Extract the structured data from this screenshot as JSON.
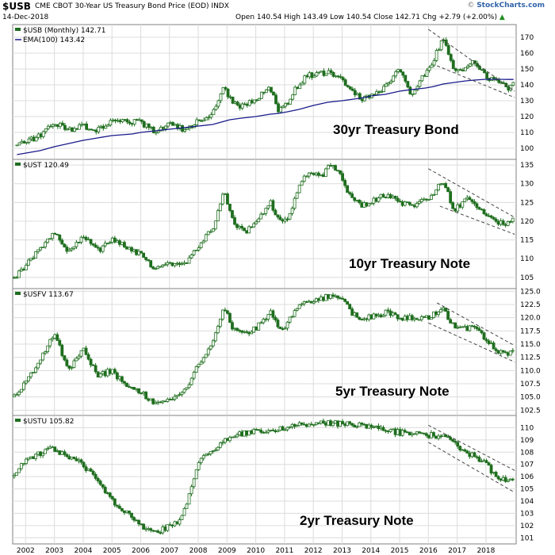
{
  "header": {
    "symbol": "$USB",
    "description": "CME CBOT 30-Year US Treasury Bond Price (EOD)  INDX",
    "date": "14-Dec-2018",
    "ohlc_text": "Open 140.54  High 143.49  Low 140.54  Close 142.71  Chg +2.79 (+2.00%)",
    "up_arrow": "▲",
    "logo_prefix": "© ",
    "logo_brand": "StockCharts.com"
  },
  "colors": {
    "candle": "#1f6e1f",
    "ema": "#1a1a8c",
    "grid": "#dcdcdc",
    "frame": "#808080",
    "trend": "#444444"
  },
  "chart_data": [
    {
      "type": "candlestick",
      "symbol": "$USB",
      "legend_main": "$USB (Monthly) 142.71",
      "legend_ema": "EMA(100) 143.42",
      "annotation": "30yr Treasury Bond",
      "ylim": [
        93,
        178
      ],
      "yticks": [
        "100",
        "110",
        "120",
        "130",
        "140",
        "150",
        "160",
        "170"
      ],
      "xticks": [
        "2002",
        "2003",
        "2004",
        "2005",
        "2006",
        "2007",
        "2008",
        "2009",
        "2010",
        "2011",
        "2012",
        "2013",
        "2014",
        "2015",
        "2016",
        "2017",
        "2018"
      ],
      "x": [
        2001.7,
        2002.5,
        2003.0,
        2003.5,
        2004.0,
        2004.5,
        2005.0,
        2005.7,
        2006.0,
        2006.5,
        2007.0,
        2007.5,
        2008.0,
        2008.5,
        2008.9,
        2009.1,
        2009.5,
        2010.0,
        2010.5,
        2010.8,
        2011.1,
        2011.5,
        2011.8,
        2012.0,
        2012.5,
        2013.0,
        2013.4,
        2013.8,
        2014.0,
        2014.5,
        2015.0,
        2015.4,
        2015.9,
        2016.2,
        2016.5,
        2016.9,
        2017.3,
        2017.6,
        2018.0,
        2018.4,
        2018.8,
        2018.96
      ],
      "close": [
        102,
        108,
        116,
        111,
        114,
        111,
        118,
        117,
        116,
        111,
        115,
        112,
        117,
        121,
        140,
        131,
        126,
        131,
        138,
        124,
        128,
        141,
        146,
        146,
        148,
        143,
        134,
        131,
        133,
        138,
        151,
        134,
        148,
        156,
        170,
        148,
        151,
        154,
        145,
        141,
        138,
        142.7
      ],
      "ema": [
        96,
        98.5,
        101,
        103,
        105,
        106.5,
        108,
        109,
        110,
        111,
        112,
        113,
        114,
        115,
        117,
        118,
        119,
        120,
        121.5,
        122,
        123,
        124.5,
        126,
        127,
        129,
        130,
        131,
        132,
        133,
        134,
        136,
        137,
        138,
        139,
        140.5,
        141.5,
        142.5,
        143,
        143.5,
        143.5,
        143.4,
        143.4
      ],
      "trend_lines": [
        {
          "x": [
            2016.0,
            2019.0
          ],
          "y": [
            175,
            136
          ]
        },
        {
          "x": [
            2016.3,
            2019.0
          ],
          "y": [
            152,
            132
          ]
        }
      ]
    },
    {
      "type": "candlestick",
      "symbol": "$UST",
      "legend_main": "$UST 120.49",
      "annotation": "10yr Treasury Note",
      "ylim": [
        102,
        136.5
      ],
      "yticks": [
        "105",
        "110",
        "115",
        "120",
        "125",
        "130",
        "135"
      ],
      "xticks": [
        "2002",
        "2003",
        "2004",
        "2005",
        "2006",
        "2007",
        "2008",
        "2009",
        "2010",
        "2011",
        "2012",
        "2013",
        "2014",
        "2015",
        "2016",
        "2017",
        "2018"
      ],
      "x": [
        2001.6,
        2002.0,
        2002.5,
        2003.0,
        2003.5,
        2004.0,
        2004.5,
        2005.0,
        2005.5,
        2006.0,
        2006.5,
        2007.0,
        2007.5,
        2008.0,
        2008.5,
        2008.9,
        2009.2,
        2009.6,
        2010.0,
        2010.5,
        2010.9,
        2011.2,
        2011.5,
        2011.8,
        2012.3,
        2012.6,
        2013.0,
        2013.3,
        2013.7,
        2014.0,
        2014.5,
        2015.0,
        2015.5,
        2016.0,
        2016.5,
        2016.9,
        2017.3,
        2017.6,
        2018.0,
        2018.3,
        2018.7,
        2018.96
      ],
      "close": [
        105,
        108,
        113,
        117,
        112,
        116,
        112,
        115,
        113,
        111,
        107,
        109,
        108,
        113,
        118,
        128,
        120,
        117,
        119,
        125,
        119,
        122,
        130,
        133,
        132,
        135,
        132,
        126,
        124,
        125,
        127,
        125,
        124,
        126,
        131,
        123,
        126,
        125,
        122,
        120,
        119,
        120.5
      ],
      "trend_lines": [
        {
          "x": [
            2016.0,
            2019.0
          ],
          "y": [
            134,
            121
          ]
        },
        {
          "x": [
            2016.4,
            2019.0
          ],
          "y": [
            124,
            116.5
          ]
        }
      ]
    },
    {
      "type": "candlestick",
      "symbol": "$USFV",
      "legend_main": "$USFV 113.67",
      "annotation": "5yr Treasury Note",
      "ylim": [
        101.5,
        125.5
      ],
      "yticks": [
        "102.5",
        "105.0",
        "107.5",
        "110.0",
        "112.5",
        "115.0",
        "117.5",
        "120.0",
        "122.5",
        "125.0"
      ],
      "xticks": [
        "2002",
        "2003",
        "2004",
        "2005",
        "2006",
        "2007",
        "2008",
        "2009",
        "2010",
        "2011",
        "2012",
        "2013",
        "2014",
        "2015",
        "2016",
        "2017",
        "2018"
      ],
      "x": [
        2001.6,
        2002.0,
        2002.5,
        2003.0,
        2003.5,
        2004.0,
        2004.5,
        2005.0,
        2005.5,
        2006.0,
        2006.4,
        2006.8,
        2007.2,
        2007.6,
        2008.0,
        2008.5,
        2008.9,
        2009.2,
        2009.6,
        2010.0,
        2010.5,
        2010.9,
        2011.3,
        2011.7,
        2012.0,
        2012.5,
        2013.0,
        2013.3,
        2013.7,
        2014.0,
        2014.5,
        2015.0,
        2015.5,
        2016.0,
        2016.5,
        2016.9,
        2017.3,
        2017.6,
        2018.0,
        2018.3,
        2018.7,
        2018.96
      ],
      "close": [
        105,
        108,
        112,
        117,
        110,
        114,
        109,
        110,
        107,
        106,
        104,
        104,
        105,
        107,
        111,
        115,
        122,
        118,
        117,
        118,
        121,
        117,
        121,
        123,
        123,
        124,
        124,
        121,
        120,
        120,
        121,
        120,
        120,
        120,
        122,
        118,
        118,
        118,
        116,
        114,
        113,
        113.7
      ],
      "trend_lines": [
        {
          "x": [
            2016.3,
            2019.0
          ],
          "y": [
            122.8,
            114.7
          ]
        },
        {
          "x": [
            2016.0,
            2019.0
          ],
          "y": [
            119.0,
            111.6
          ]
        }
      ]
    },
    {
      "type": "candlestick",
      "symbol": "$USTU",
      "legend_main": "$USTU 105.82",
      "annotation": "2yr Treasury Note",
      "ylim": [
        100.5,
        111
      ],
      "yticks": [
        "101",
        "102",
        "103",
        "104",
        "105",
        "106",
        "107",
        "108",
        "109",
        "110"
      ],
      "xticks": [
        "2002",
        "2003",
        "2004",
        "2005",
        "2006",
        "2007",
        "2008",
        "2009",
        "2010",
        "2011",
        "2012",
        "2013",
        "2014",
        "2015",
        "2016",
        "2017",
        "2018"
      ],
      "x": [
        2001.6,
        2001.85,
        2002.2,
        2002.6,
        2003.0,
        2003.5,
        2004.0,
        2004.5,
        2005.0,
        2005.5,
        2006.0,
        2006.5,
        2006.9,
        2007.3,
        2007.7,
        2008.0,
        2008.3,
        2008.7,
        2009.0,
        2009.5,
        2010.0,
        2010.5,
        2011.0,
        2011.5,
        2012.0,
        2012.5,
        2013.0,
        2013.5,
        2014.0,
        2014.5,
        2015.0,
        2015.5,
        2016.0,
        2016.5,
        2016.9,
        2017.3,
        2017.6,
        2018.0,
        2018.3,
        2018.7,
        2018.96
      ],
      "close": [
        106,
        107,
        107.5,
        108,
        108.3,
        107.5,
        107,
        105.5,
        104,
        103,
        102,
        101.5,
        101.8,
        102.3,
        104.5,
        107,
        108,
        108.5,
        109,
        109.5,
        109.7,
        109.8,
        110,
        110.2,
        110.3,
        110.4,
        110.3,
        110.2,
        110,
        109.8,
        109.6,
        109.5,
        109.4,
        109.3,
        108.7,
        108.1,
        107.6,
        107,
        106.2,
        105.6,
        105.8
      ],
      "trend_lines": [
        {
          "x": [
            2016.0,
            2019.0
          ],
          "y": [
            110.2,
            106.5
          ]
        },
        {
          "x": [
            2016.0,
            2019.0
          ],
          "y": [
            108.8,
            104.7
          ]
        }
      ]
    }
  ]
}
